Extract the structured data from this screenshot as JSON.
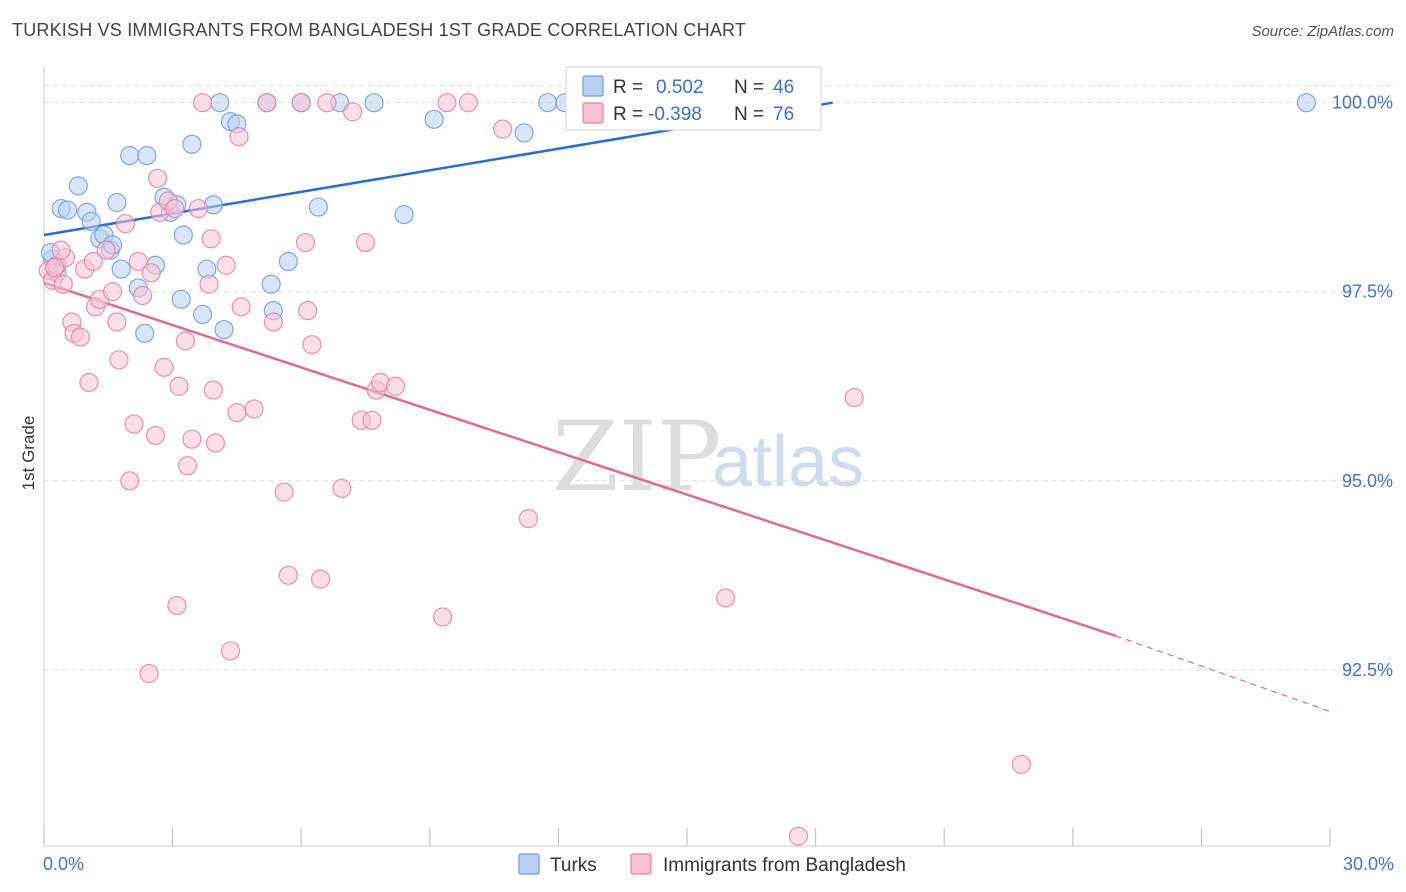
{
  "title": "TURKISH VS IMMIGRANTS FROM BANGLADESH 1ST GRADE CORRELATION CHART",
  "source": "Source: ZipAtlas.com",
  "watermark": {
    "zip": "ZIP",
    "atlas": "atlas"
  },
  "colors": {
    "turks": "#6b9be0",
    "turks_fill": "#b8d0f2",
    "bangladesh": "#e87fa3",
    "bangladesh_fill": "#f7c3d4",
    "turks_line": "#2a6dcc",
    "bangladesh_line": "#e06a96",
    "grid": "#dddddd",
    "tick_text": "#4472c4"
  },
  "legend": {
    "rows": [
      {
        "r_label": "R =",
        "r_value": "0.502",
        "n_label": "N =",
        "n_value": "46"
      },
      {
        "r_label": "R =",
        "r_value": "-0.398",
        "n_label": "N =",
        "n_value": "76"
      }
    ]
  },
  "chart_data": {
    "type": "scatter",
    "title": "TURKISH VS IMMIGRANTS FROM BANGLADESH 1ST GRADE CORRELATION CHART",
    "xlabel": "",
    "ylabel": "1st Grade",
    "xlim": [
      0,
      30
    ],
    "ylim": [
      90.25,
      100.3
    ],
    "x_tick_labels": [
      "0.0%",
      "30.0%"
    ],
    "y_ticks": [
      92.5,
      95.0,
      97.5,
      100.0
    ],
    "y_tick_labels": [
      "92.5%",
      "95.0%",
      "97.5%",
      "100.0%"
    ],
    "grid": true,
    "series": [
      {
        "name": "Turks",
        "r": 0.502,
        "n": 46,
        "trend": {
          "x0": 0,
          "y0": 98.25,
          "x1": 18.4,
          "y1": 100.0
        },
        "points": [
          [
            0.2,
            97.93
          ],
          [
            0.4,
            98.6
          ],
          [
            0.55,
            98.58
          ],
          [
            0.8,
            98.9
          ],
          [
            1.0,
            98.55
          ],
          [
            1.1,
            98.43
          ],
          [
            1.3,
            98.2
          ],
          [
            1.4,
            98.25
          ],
          [
            1.55,
            98.05
          ],
          [
            1.7,
            98.68
          ],
          [
            1.8,
            97.8
          ],
          [
            2.0,
            99.3
          ],
          [
            2.2,
            97.55
          ],
          [
            2.35,
            96.95
          ],
          [
            2.4,
            99.3
          ],
          [
            2.6,
            97.85
          ],
          [
            2.8,
            98.75
          ],
          [
            2.95,
            98.55
          ],
          [
            3.1,
            98.65
          ],
          [
            3.2,
            97.4
          ],
          [
            3.25,
            98.25
          ],
          [
            3.45,
            99.45
          ],
          [
            3.7,
            97.2
          ],
          [
            3.8,
            97.8
          ],
          [
            3.95,
            98.65
          ],
          [
            4.1,
            100.0
          ],
          [
            4.2,
            97.0
          ],
          [
            4.35,
            99.75
          ],
          [
            4.5,
            99.72
          ],
          [
            5.2,
            100.0
          ],
          [
            5.3,
            97.6
          ],
          [
            5.35,
            97.25
          ],
          [
            5.7,
            97.9
          ],
          [
            6.0,
            100.0
          ],
          [
            6.4,
            98.62
          ],
          [
            6.9,
            100.0
          ],
          [
            7.7,
            100.0
          ],
          [
            8.4,
            98.52
          ],
          [
            9.1,
            99.78
          ],
          [
            11.2,
            99.6
          ],
          [
            11.75,
            100.0
          ],
          [
            12.15,
            100.0
          ],
          [
            29.45,
            100.0
          ],
          [
            0.15,
            98.02
          ],
          [
            0.3,
            97.75
          ],
          [
            1.6,
            98.12
          ]
        ]
      },
      {
        "name": "Immigrants from Bangladesh",
        "r": -0.398,
        "n": 76,
        "trend": {
          "x0": 0,
          "y0": 97.62,
          "x1": 25.0,
          "y1": 92.95,
          "dash_to_x": 30,
          "dash_to_y": 91.95
        },
        "points": [
          [
            0.1,
            97.78
          ],
          [
            0.2,
            97.65
          ],
          [
            0.3,
            97.85
          ],
          [
            0.45,
            97.6
          ],
          [
            0.5,
            97.95
          ],
          [
            0.65,
            97.1
          ],
          [
            0.7,
            96.95
          ],
          [
            0.85,
            96.9
          ],
          [
            0.95,
            97.8
          ],
          [
            1.05,
            96.3
          ],
          [
            1.2,
            97.3
          ],
          [
            1.3,
            97.4
          ],
          [
            1.45,
            98.05
          ],
          [
            1.6,
            97.5
          ],
          [
            1.7,
            97.1
          ],
          [
            1.75,
            96.6
          ],
          [
            1.9,
            98.4
          ],
          [
            2.0,
            95.0
          ],
          [
            2.1,
            95.75
          ],
          [
            2.2,
            97.9
          ],
          [
            2.3,
            97.45
          ],
          [
            2.45,
            92.45
          ],
          [
            2.6,
            95.6
          ],
          [
            2.65,
            99.0
          ],
          [
            2.7,
            98.55
          ],
          [
            2.8,
            96.5
          ],
          [
            2.9,
            98.7
          ],
          [
            3.05,
            98.6
          ],
          [
            3.1,
            93.35
          ],
          [
            3.15,
            96.25
          ],
          [
            3.3,
            96.85
          ],
          [
            3.35,
            95.2
          ],
          [
            3.45,
            95.55
          ],
          [
            3.6,
            98.6
          ],
          [
            3.7,
            100.0
          ],
          [
            3.85,
            97.6
          ],
          [
            3.95,
            96.2
          ],
          [
            4.0,
            95.5
          ],
          [
            4.25,
            97.85
          ],
          [
            4.35,
            92.75
          ],
          [
            4.5,
            95.9
          ],
          [
            4.6,
            97.3
          ],
          [
            4.9,
            95.95
          ],
          [
            5.2,
            100.0
          ],
          [
            5.35,
            97.1
          ],
          [
            5.6,
            94.85
          ],
          [
            5.7,
            93.75
          ],
          [
            6.0,
            100.0
          ],
          [
            6.15,
            97.25
          ],
          [
            6.25,
            96.8
          ],
          [
            6.45,
            93.7
          ],
          [
            6.6,
            100.0
          ],
          [
            6.95,
            94.9
          ],
          [
            7.2,
            99.88
          ],
          [
            7.4,
            95.8
          ],
          [
            7.5,
            98.15
          ],
          [
            7.65,
            95.8
          ],
          [
            7.75,
            96.2
          ],
          [
            7.85,
            96.3
          ],
          [
            8.2,
            96.25
          ],
          [
            9.3,
            93.2
          ],
          [
            9.4,
            100.0
          ],
          [
            9.9,
            100.0
          ],
          [
            10.7,
            99.65
          ],
          [
            11.3,
            94.5
          ],
          [
            15.9,
            93.45
          ],
          [
            17.6,
            90.3
          ],
          [
            18.9,
            96.1
          ],
          [
            22.8,
            91.25
          ],
          [
            0.4,
            98.05
          ],
          [
            1.15,
            97.9
          ],
          [
            2.5,
            97.75
          ],
          [
            4.55,
            99.55
          ],
          [
            6.1,
            98.15
          ],
          [
            0.25,
            97.82
          ],
          [
            3.9,
            98.2
          ]
        ]
      }
    ]
  },
  "bottom_legend": {
    "items": [
      {
        "label": "Turks"
      },
      {
        "label": "Immigrants from Bangladesh"
      }
    ]
  }
}
